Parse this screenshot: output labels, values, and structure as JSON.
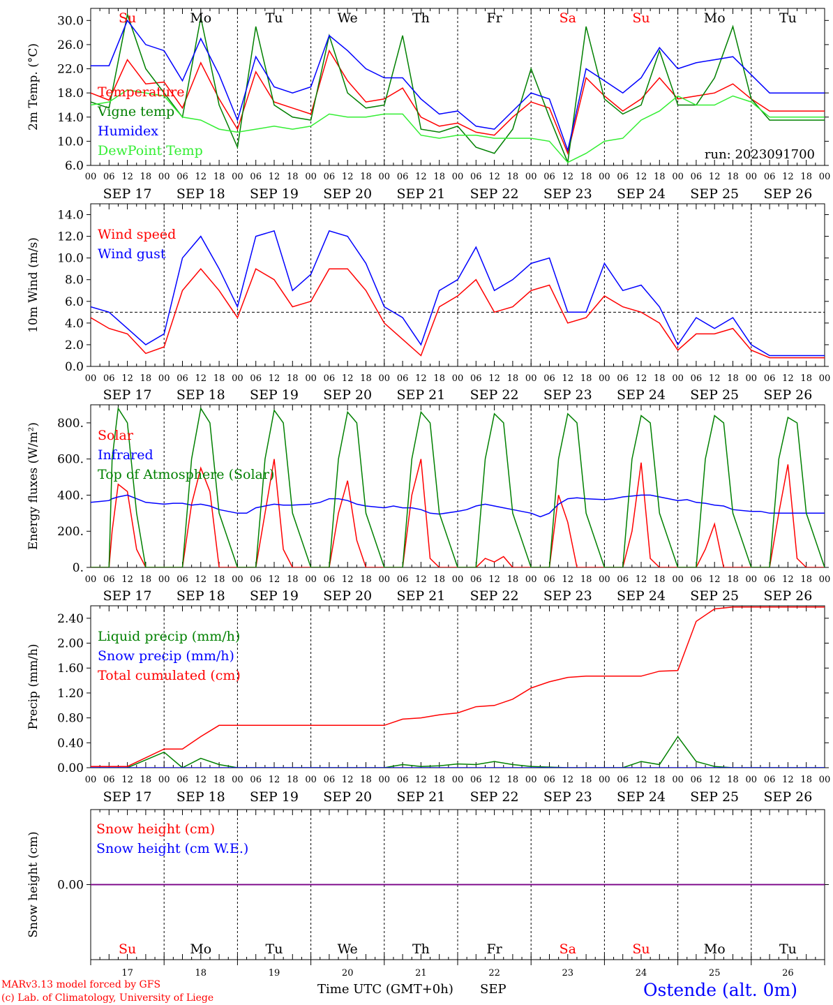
{
  "colors": {
    "red": "#ff0000",
    "green": "#008000",
    "blue": "#0000ff",
    "lightgreen": "#33ee33",
    "purple": "#800080",
    "black": "#000000"
  },
  "weekdays": [
    {
      "label": "Su",
      "color": "#ff0000"
    },
    {
      "label": "Mo",
      "color": "#000000"
    },
    {
      "label": "Tu",
      "color": "#000000"
    },
    {
      "label": "We",
      "color": "#000000"
    },
    {
      "label": "Th",
      "color": "#000000"
    },
    {
      "label": "Fr",
      "color": "#000000"
    },
    {
      "label": "Sa",
      "color": "#ff0000"
    },
    {
      "label": "Su",
      "color": "#ff0000"
    },
    {
      "label": "Mo",
      "color": "#000000"
    },
    {
      "label": "Tu",
      "color": "#000000"
    }
  ],
  "date_labels": [
    "SEP 17",
    "SEP 18",
    "SEP 19",
    "SEP 20",
    "SEP 21",
    "SEP 22",
    "SEP 23",
    "SEP 24",
    "SEP 25",
    "SEP 26"
  ],
  "hour_labels": [
    "00",
    "06",
    "12",
    "18"
  ],
  "hour_label_end": "00",
  "bottom_day_numbers": [
    "17",
    "18",
    "19",
    "20",
    "21",
    "22",
    "23",
    "24",
    "25",
    "26"
  ],
  "footer": {
    "model": "MARv3.13 model forced by GFS",
    "copyright": "(c) Lab. of Climatology, University of Liege",
    "xlabel": "Time UTC (GMT+0h)",
    "month": "SEP",
    "station": "Ostende (alt. 0m)"
  },
  "chart_data": [
    {
      "type": "line",
      "ylabel": "2m Temp. (°C)",
      "ylim": [
        6,
        32
      ],
      "yticks": [
        "6.0",
        "10.0",
        "14.0",
        "18.0",
        "22.0",
        "26.0",
        "30.0"
      ],
      "yticks_values": [
        6,
        10,
        14,
        18,
        22,
        26,
        30
      ],
      "run_label": "run: 2023091700",
      "x_hours": [
        0,
        6,
        12,
        18,
        24,
        30,
        36,
        42,
        48,
        54,
        60,
        66,
        72,
        78,
        84,
        90,
        96,
        102,
        108,
        114,
        120,
        126,
        132,
        138,
        144,
        150,
        156,
        162,
        168,
        174,
        180,
        186,
        192,
        198,
        204,
        210,
        216,
        222,
        228,
        234,
        240
      ],
      "series": [
        {
          "name": "Temperature",
          "color": "#ff0000",
          "values": [
            18.0,
            16.8,
            23.5,
            19.5,
            19.8,
            15.5,
            23.0,
            17.0,
            12.0,
            21.5,
            16.5,
            15.5,
            14.5,
            25.0,
            20.0,
            16.5,
            17.0,
            18.8,
            14.0,
            12.5,
            13.0,
            11.5,
            11.0,
            14.0,
            16.5,
            15.5,
            8.0,
            20.5,
            17.5,
            15.0,
            17.0,
            20.5,
            17.0,
            17.5,
            18.0,
            19.5,
            17.0,
            15.0,
            15.0,
            15.0,
            15.0
          ]
        },
        {
          "name": "Vigne temp",
          "color": "#008000",
          "values": [
            16.5,
            15.5,
            31.0,
            22.0,
            18.0,
            14.0,
            30.5,
            16.0,
            9.0,
            29.0,
            16.0,
            14.0,
            13.5,
            27.5,
            18.0,
            15.5,
            16.0,
            27.5,
            12.0,
            11.5,
            12.5,
            9.0,
            8.0,
            12.0,
            22.0,
            14.0,
            6.5,
            29.0,
            17.0,
            14.5,
            16.0,
            25.0,
            16.0,
            16.0,
            20.5,
            29.0,
            17.0,
            13.5,
            13.5,
            13.5,
            13.5
          ]
        },
        {
          "name": "Humidex",
          "color": "#0000ff",
          "values": [
            22.5,
            22.5,
            30.0,
            26.0,
            25.0,
            20.0,
            27.0,
            21.0,
            13.5,
            24.0,
            19.0,
            18.0,
            19.0,
            27.5,
            25.0,
            22.0,
            20.5,
            20.5,
            17.0,
            14.5,
            15.0,
            12.5,
            12.0,
            15.0,
            18.0,
            17.0,
            8.5,
            22.0,
            20.0,
            18.0,
            20.5,
            25.5,
            22.0,
            23.0,
            23.5,
            24.0,
            21.0,
            18.0,
            18.0,
            18.0,
            18.0
          ]
        },
        {
          "name": "DewPoint Temp",
          "color": "#33ee33",
          "values": [
            16.0,
            16.5,
            18.5,
            18.0,
            17.5,
            14.0,
            13.5,
            12.0,
            11.5,
            12.0,
            12.5,
            12.0,
            12.5,
            14.5,
            14.0,
            14.0,
            14.5,
            14.5,
            11.0,
            10.5,
            11.0,
            11.0,
            10.5,
            10.5,
            10.5,
            10.0,
            6.5,
            8.0,
            10.0,
            10.5,
            13.5,
            15.0,
            17.5,
            16.0,
            16.0,
            17.5,
            16.5,
            14.0,
            14.0,
            14.0,
            14.0
          ]
        }
      ]
    },
    {
      "type": "line",
      "ylabel": "10m Wind (m/s)",
      "ylim": [
        0,
        15
      ],
      "yticks": [
        "0.0",
        "2.0",
        "4.0",
        "6.0",
        "8.0",
        "10.0",
        "12.0",
        "14.0"
      ],
      "yticks_values": [
        0,
        2,
        4,
        6,
        8,
        10,
        12,
        14
      ],
      "reference_line": 5,
      "x_hours": [
        0,
        6,
        12,
        18,
        24,
        30,
        36,
        42,
        48,
        54,
        60,
        66,
        72,
        78,
        84,
        90,
        96,
        102,
        108,
        114,
        120,
        126,
        132,
        138,
        144,
        150,
        156,
        162,
        168,
        174,
        180,
        186,
        192,
        198,
        204,
        210,
        216,
        222,
        228,
        234,
        240
      ],
      "series": [
        {
          "name": "Wind speed",
          "color": "#ff0000",
          "values": [
            4.5,
            3.5,
            3.0,
            1.2,
            1.8,
            7.0,
            9.0,
            7.0,
            4.5,
            9.0,
            8.0,
            5.5,
            6.0,
            9.0,
            9.0,
            7.0,
            4.0,
            2.5,
            1.0,
            5.5,
            6.5,
            8.0,
            5.0,
            5.5,
            7.0,
            7.5,
            4.0,
            4.5,
            6.5,
            5.5,
            5.0,
            4.0,
            1.5,
            3.0,
            3.0,
            3.5,
            1.5,
            0.8,
            0.8,
            0.8,
            0.8
          ]
        },
        {
          "name": "Wind gust",
          "color": "#0000ff",
          "values": [
            5.5,
            5.0,
            3.5,
            2.0,
            3.0,
            10.0,
            12.0,
            9.0,
            5.5,
            12.0,
            12.5,
            7.0,
            8.5,
            12.5,
            12.0,
            9.5,
            5.5,
            4.5,
            2.0,
            7.0,
            8.0,
            11.0,
            7.0,
            8.0,
            9.5,
            10.0,
            5.0,
            5.0,
            9.5,
            7.0,
            7.5,
            5.5,
            2.0,
            4.5,
            3.5,
            4.5,
            2.0,
            1.0,
            1.0,
            1.0,
            1.0
          ]
        }
      ]
    },
    {
      "type": "line",
      "ylabel": "Energy fluxes (W/m²)",
      "ylim": [
        0,
        900
      ],
      "yticks": [
        "0.",
        "200.",
        "400.",
        "600.",
        "800."
      ],
      "yticks_values": [
        0,
        200,
        400,
        600,
        800
      ],
      "x_hours": [
        0,
        3,
        6,
        7,
        9,
        12,
        15,
        18,
        24,
        27,
        30,
        33,
        36,
        39,
        42,
        48,
        51,
        54,
        57,
        60,
        63,
        66,
        72,
        75,
        78,
        81,
        84,
        87,
        90,
        96,
        99,
        102,
        105,
        108,
        111,
        114,
        120,
        123,
        126,
        129,
        132,
        135,
        138,
        144,
        147,
        150,
        153,
        156,
        159,
        162,
        168,
        171,
        174,
        177,
        180,
        183,
        186,
        192,
        195,
        198,
        201,
        204,
        207,
        210,
        216,
        219,
        222,
        225,
        228,
        231,
        234,
        240
      ],
      "series": [
        {
          "name": "Solar",
          "color": "#ff0000",
          "values": [
            0,
            0,
            0,
            200,
            460,
            420,
            100,
            0,
            0,
            0,
            0,
            350,
            550,
            420,
            0,
            0,
            0,
            0,
            300,
            600,
            100,
            0,
            0,
            0,
            0,
            300,
            480,
            150,
            0,
            0,
            0,
            0,
            400,
            600,
            50,
            0,
            0,
            0,
            0,
            50,
            30,
            60,
            0,
            0,
            0,
            0,
            400,
            250,
            0,
            0,
            0,
            0,
            0,
            200,
            580,
            50,
            0,
            0,
            0,
            0,
            100,
            240,
            0,
            0,
            0,
            0,
            0,
            300,
            570,
            50,
            0,
            0
          ]
        },
        {
          "name": "Infrared",
          "color": "#0000ff",
          "values": [
            360,
            365,
            370,
            380,
            390,
            400,
            380,
            360,
            350,
            355,
            355,
            345,
            350,
            340,
            320,
            300,
            300,
            330,
            340,
            350,
            345,
            345,
            350,
            360,
            380,
            380,
            370,
            350,
            340,
            330,
            340,
            330,
            330,
            320,
            300,
            295,
            310,
            320,
            340,
            350,
            340,
            330,
            320,
            300,
            280,
            300,
            350,
            380,
            385,
            380,
            375,
            380,
            390,
            395,
            400,
            400,
            390,
            370,
            375,
            360,
            355,
            345,
            340,
            320,
            310,
            310,
            300,
            300,
            300,
            300,
            300,
            300
          ]
        },
        {
          "name": "Top of Atmosphere (Solar)",
          "color": "#008000",
          "values": [
            0,
            0,
            0,
            600,
            880,
            800,
            300,
            0,
            0,
            0,
            0,
            600,
            880,
            800,
            300,
            0,
            0,
            0,
            600,
            870,
            800,
            300,
            0,
            0,
            0,
            600,
            860,
            800,
            300,
            0,
            0,
            0,
            600,
            860,
            800,
            300,
            0,
            0,
            0,
            600,
            850,
            800,
            300,
            0,
            0,
            0,
            600,
            850,
            800,
            300,
            0,
            0,
            0,
            600,
            840,
            800,
            300,
            0,
            0,
            0,
            600,
            840,
            800,
            300,
            0,
            0,
            0,
            600,
            830,
            800,
            300,
            0
          ]
        }
      ]
    },
    {
      "type": "line",
      "ylabel": "Precip (mm/h)",
      "ylim": [
        0,
        2.6
      ],
      "yticks": [
        "0.00",
        "0.40",
        "0.80",
        "1.20",
        "1.60",
        "2.00",
        "2.40"
      ],
      "yticks_values": [
        0,
        0.4,
        0.8,
        1.2,
        1.6,
        2.0,
        2.4
      ],
      "x_hours": [
        0,
        12,
        24,
        30,
        36,
        42,
        48,
        60,
        72,
        84,
        96,
        102,
        108,
        114,
        120,
        126,
        132,
        138,
        144,
        150,
        156,
        162,
        168,
        174,
        180,
        186,
        192,
        198,
        204,
        210,
        216,
        222,
        228,
        234,
        240
      ],
      "series": [
        {
          "name": "Liquid precip (mm/h)",
          "color": "#008000",
          "values": [
            0,
            0,
            0.25,
            0,
            0.15,
            0.05,
            0,
            0,
            0,
            0,
            0,
            0.05,
            0.02,
            0.03,
            0.06,
            0.05,
            0.1,
            0.05,
            0.02,
            0.01,
            0,
            0,
            0,
            0,
            0.1,
            0.05,
            0.5,
            0.1,
            0.02,
            0,
            0,
            0,
            0,
            0,
            0
          ]
        },
        {
          "name": "Snow precip (mm/h)",
          "color": "#0000ff",
          "values": [
            0,
            0,
            0,
            0,
            0,
            0,
            0,
            0,
            0,
            0,
            0,
            0,
            0,
            0,
            0,
            0,
            0,
            0,
            0,
            0,
            0,
            0,
            0,
            0,
            0,
            0,
            0,
            0,
            0,
            0,
            0,
            0,
            0,
            0,
            0
          ]
        },
        {
          "name": "Total cumulated (cm)",
          "color": "#ff0000",
          "values": [
            0.02,
            0.02,
            0.3,
            0.3,
            0.5,
            0.68,
            0.68,
            0.68,
            0.68,
            0.68,
            0.68,
            0.78,
            0.8,
            0.85,
            0.88,
            0.98,
            1.0,
            1.1,
            1.28,
            1.38,
            1.45,
            1.47,
            1.47,
            1.47,
            1.47,
            1.55,
            1.56,
            2.35,
            2.55,
            2.58,
            2.58,
            2.58,
            2.58,
            2.58,
            2.58
          ]
        }
      ]
    },
    {
      "type": "line",
      "ylabel": "Snow height (cm)",
      "ylim": [
        -1,
        1
      ],
      "yticks": [
        "0.00"
      ],
      "yticks_values": [
        0
      ],
      "x_hours": [
        0,
        240
      ],
      "series": [
        {
          "name": "Snow height (cm)",
          "color": "#ff0000",
          "values": [
            0,
            0
          ]
        },
        {
          "name": "Snow height (cm W.E.)",
          "color": "#0000ff",
          "values": [
            0,
            0
          ]
        }
      ]
    }
  ]
}
